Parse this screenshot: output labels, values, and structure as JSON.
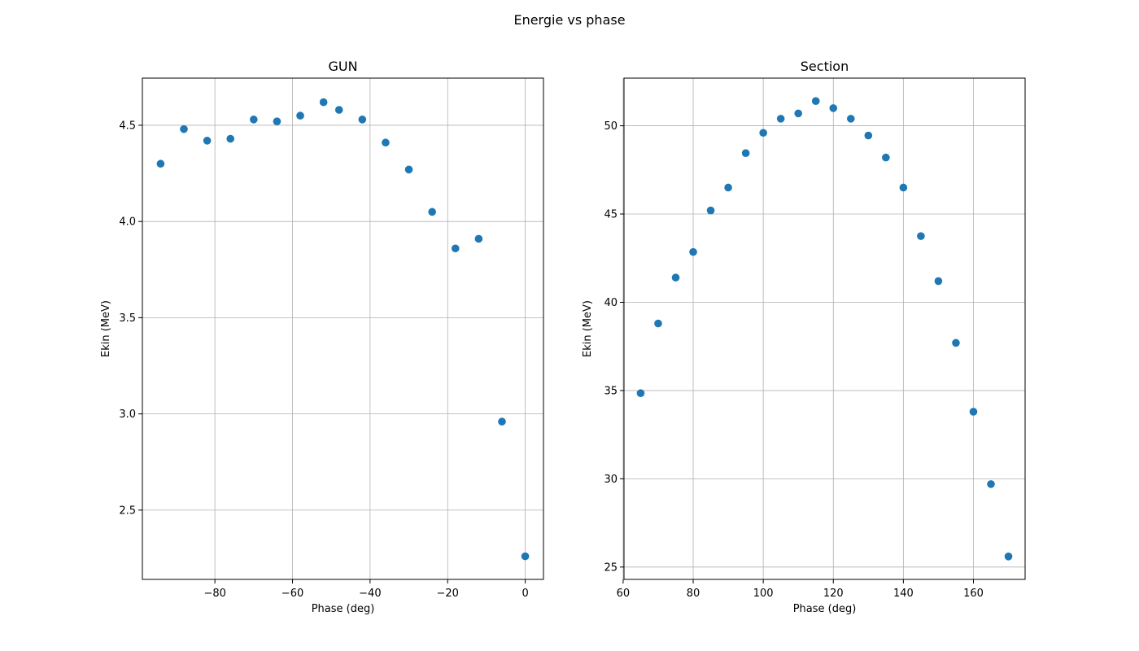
{
  "figure": {
    "suptitle": "Energie vs phase"
  },
  "chart_data": [
    {
      "type": "scatter",
      "title": "GUN",
      "xlabel": "Phase (deg)",
      "ylabel": "Ekin (MeV)",
      "xlim": [
        -98.7,
        4.7
      ],
      "ylim": [
        2.14,
        4.745
      ],
      "xticks": [
        -80,
        -60,
        -40,
        -20,
        0
      ],
      "xtick_labels": [
        "−80",
        "−60",
        "−40",
        "−20",
        "0"
      ],
      "yticks": [
        2.5,
        3.0,
        3.5,
        4.0,
        4.5
      ],
      "ytick_labels": [
        "2.5",
        "3.0",
        "3.5",
        "4.0",
        "4.5"
      ],
      "grid": true,
      "color": "#1f77b4",
      "series": [
        {
          "x": [
            -94,
            -88,
            -82,
            -76,
            -70,
            -64,
            -58,
            -52,
            -48,
            -42,
            -36,
            -30,
            -24,
            -18,
            -12,
            -6,
            0
          ],
          "y": [
            4.3,
            4.48,
            4.42,
            4.43,
            4.53,
            4.52,
            4.55,
            4.62,
            4.58,
            4.53,
            4.41,
            4.27,
            4.05,
            3.86,
            3.91,
            2.96,
            2.26
          ]
        }
      ]
    },
    {
      "type": "scatter",
      "title": "Section",
      "xlabel": "Phase (deg)",
      "ylabel": "Ekin (MeV)",
      "xlim": [
        60.25,
        174.75
      ],
      "ylim": [
        24.3,
        52.7
      ],
      "xticks": [
        60,
        80,
        100,
        120,
        140,
        160
      ],
      "xtick_labels": [
        "60",
        "80",
        "100",
        "120",
        "140",
        "160"
      ],
      "yticks": [
        25,
        30,
        35,
        40,
        45,
        50
      ],
      "ytick_labels": [
        "25",
        "30",
        "35",
        "40",
        "45",
        "50"
      ],
      "grid": true,
      "color": "#1f77b4",
      "series": [
        {
          "x": [
            65,
            70,
            75,
            80,
            85,
            90,
            95,
            100,
            105,
            110,
            115,
            120,
            125,
            130,
            135,
            140,
            145,
            150,
            155,
            160,
            165,
            170
          ],
          "y": [
            34.85,
            38.8,
            41.4,
            42.85,
            45.2,
            46.5,
            48.45,
            49.6,
            50.4,
            50.7,
            51.4,
            51.0,
            50.4,
            49.45,
            48.2,
            46.5,
            43.75,
            41.2,
            37.7,
            33.8,
            29.7,
            25.6
          ]
        }
      ]
    }
  ]
}
